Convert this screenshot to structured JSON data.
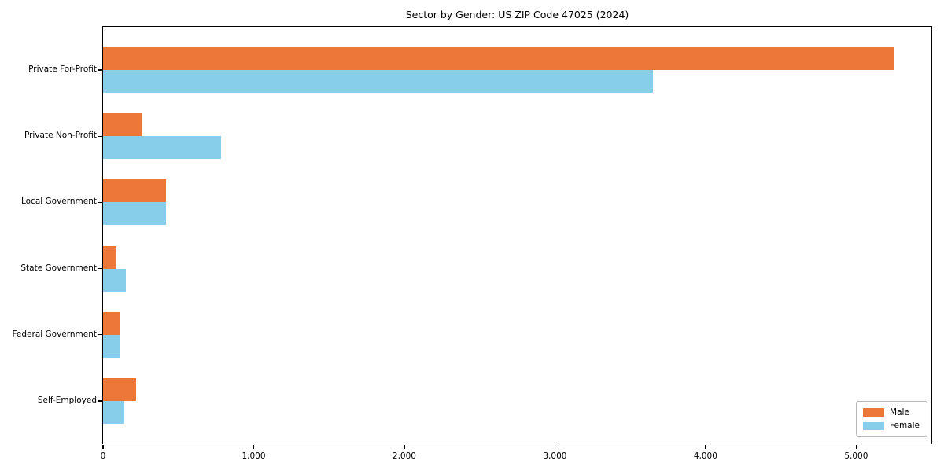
{
  "chart_data": {
    "type": "bar",
    "orientation": "horizontal",
    "title": "Sector by Gender: US ZIP Code 47025 (2024)",
    "xlabel": "",
    "ylabel": "",
    "categories": [
      "Private For-Profit",
      "Private Non-Profit",
      "Local Government",
      "State Government",
      "Federal Government",
      "Self-Employed"
    ],
    "series": [
      {
        "name": "Male",
        "color": "#ed7639",
        "values": [
          5250,
          255,
          420,
          90,
          110,
          220
        ]
      },
      {
        "name": "Female",
        "color": "#87ceeb",
        "values": [
          3650,
          785,
          420,
          150,
          110,
          135
        ]
      }
    ],
    "xlim": [
      0,
      5510
    ],
    "xticks": [
      0,
      1000,
      2000,
      3000,
      4000,
      5000
    ],
    "xtick_labels": [
      "0",
      "1,000",
      "2,000",
      "3,000",
      "4,000",
      "5,000"
    ],
    "grid": false,
    "legend": {
      "position": "lower right",
      "entries": [
        "Male",
        "Female"
      ]
    }
  }
}
